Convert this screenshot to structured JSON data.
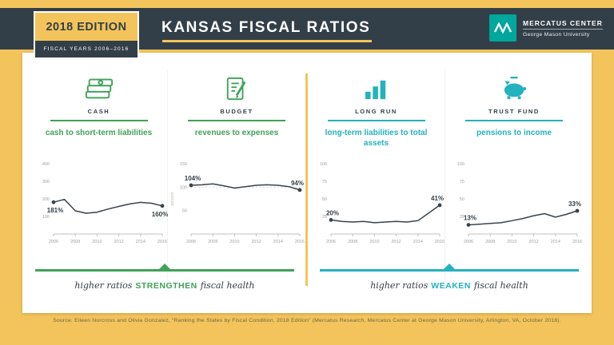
{
  "colors": {
    "yellow": "#F3C45B",
    "navy": "#333F48",
    "green": "#3FA257",
    "teal": "#23B2BE",
    "logo-teal": "#00A79D"
  },
  "header": {
    "badge": {
      "edition": "2018 EDITION",
      "years": "FISCAL YEARS 2006–2016"
    },
    "title": "KANSAS FISCAL RATIOS",
    "logo": {
      "name": "MERCATUS CENTER",
      "subtitle": "George Mason University",
      "icon": "mercatus-chevron-icon"
    }
  },
  "panels": [
    {
      "category": "CASH",
      "title": "cash to short-term liabilities",
      "icon": "money-stack-icon",
      "theme": "green"
    },
    {
      "category": "BUDGET",
      "title": "revenues to expenses",
      "icon": "document-pencil-icon",
      "theme": "green"
    },
    {
      "category": "LONG RUN",
      "title": "long-term liabilities to total assets",
      "icon": "bar-chart-icon",
      "theme": "teal"
    },
    {
      "category": "TRUST FUND",
      "title": "pensions to income",
      "icon": "piggy-bank-icon",
      "theme": "teal"
    }
  ],
  "chart_data": [
    {
      "type": "line",
      "name": "cash-to-short-term-liabilities",
      "x": [
        2006,
        2007,
        2008,
        2009,
        2010,
        2011,
        2012,
        2013,
        2014,
        2015,
        2016
      ],
      "values": [
        181,
        197,
        132,
        118,
        124,
        142,
        157,
        171,
        180,
        175,
        160
      ],
      "ylim": [
        0,
        400
      ],
      "yticks": [
        100,
        200,
        300,
        400
      ],
      "xticks": [
        2006,
        2008,
        2010,
        2012,
        2014,
        2016
      ],
      "grid": false,
      "start_label": "181%",
      "end_label": "160%",
      "label_pos": {
        "start": "below",
        "end": "below"
      }
    },
    {
      "type": "line",
      "name": "revenues-to-expenses",
      "x": [
        2006,
        2007,
        2008,
        2009,
        2010,
        2011,
        2012,
        2013,
        2014,
        2015,
        2016
      ],
      "values": [
        104,
        105,
        107,
        103,
        98,
        101,
        104,
        105,
        104,
        101,
        94
      ],
      "ylim": [
        0,
        150
      ],
      "yticks": [
        50,
        100,
        150
      ],
      "xticks": [
        2006,
        2008,
        2010,
        2012,
        2014,
        2016
      ],
      "grid": false,
      "ref_line": 100,
      "y_axis_note": "percent",
      "start_label": "104%",
      "end_label": "94%",
      "label_pos": {
        "start": "above",
        "end": "above"
      }
    },
    {
      "type": "line",
      "name": "long-term-liabilities-to-total-assets",
      "x": [
        2006,
        2007,
        2008,
        2009,
        2010,
        2011,
        2012,
        2013,
        2014,
        2015,
        2016
      ],
      "values": [
        20,
        18,
        17,
        18,
        16,
        17,
        18,
        17,
        19,
        30,
        41
      ],
      "ylim": [
        0,
        100
      ],
      "yticks": [
        25,
        50,
        75,
        100
      ],
      "xticks": [
        2006,
        2008,
        2010,
        2012,
        2014,
        2016
      ],
      "grid": false,
      "start_label": "20%",
      "end_label": "41%",
      "label_pos": {
        "start": "above",
        "end": "above"
      }
    },
    {
      "type": "line",
      "name": "pensions-to-income",
      "x": [
        2006,
        2007,
        2008,
        2009,
        2010,
        2011,
        2012,
        2013,
        2014,
        2015,
        2016
      ],
      "values": [
        13,
        14,
        15,
        16,
        19,
        22,
        26,
        29,
        24,
        28,
        33
      ],
      "ylim": [
        0,
        100
      ],
      "yticks": [
        25,
        50,
        75,
        100
      ],
      "xticks": [
        2006,
        2008,
        2010,
        2012,
        2014,
        2016
      ],
      "grid": false,
      "start_label": "13%",
      "end_label": "33%",
      "label_pos": {
        "start": "above",
        "end": "above"
      }
    }
  ],
  "footer": {
    "left": {
      "pre": "higher ratios",
      "em": "STRENGTHEN",
      "post": "fiscal health"
    },
    "right": {
      "pre": "higher ratios",
      "em": "WEAKEN",
      "post": "fiscal health"
    },
    "source": "Source: Eileen Norcross and Olivia Gonzalez, “Ranking the States by Fiscal Condition, 2018 Edition” (Mercatus Research, Mercatus Center at George Mason University, Arlington, VA, October 2018)."
  }
}
